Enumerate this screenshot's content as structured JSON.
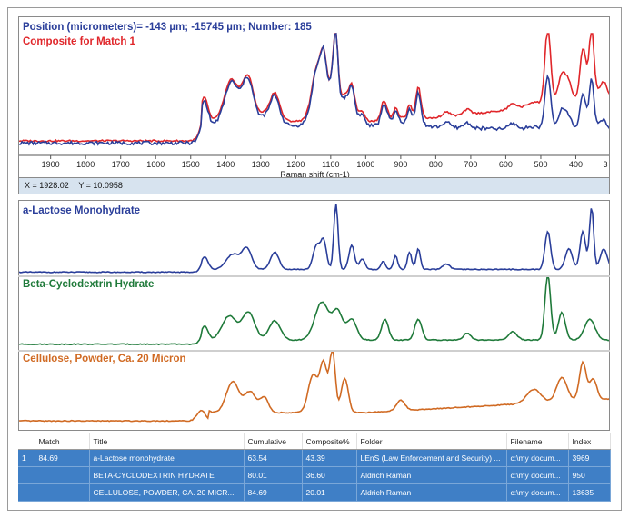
{
  "composite_panel": {
    "position_line": "Position (micrometers)= -143 µm; -15745 µm; Number: 185",
    "match_line": "Composite for Match 1",
    "x_axis_label": "Raman shift (cm-1)",
    "x_ticks": [
      "1900",
      "1800",
      "1700",
      "1600",
      "1500",
      "1400",
      "1300",
      "1200",
      "1100",
      "1000",
      "900",
      "800",
      "700",
      "600",
      "500",
      "400",
      "3"
    ],
    "cursor_x": "X = 1928.02",
    "cursor_y": "Y = 10.0958"
  },
  "reference_panels": [
    {
      "name": "a-Lactose Monohydrate",
      "color": "#2a3e9a"
    },
    {
      "name": "Beta-Cyclodextrin Hydrate",
      "color": "#1f7a3a"
    },
    {
      "name": "Cellulose, Powder, Ca. 20 Micron",
      "color": "#d06a23"
    }
  ],
  "colors": {
    "measured": "#2a3e9a",
    "composite": "#e0262a",
    "row_highlight": "#3f7fc6"
  },
  "results_table": {
    "headers": [
      "",
      "Match",
      "Title",
      "Cumulative",
      "Composite%",
      "Folder",
      "Filename",
      "Index"
    ],
    "rows": [
      [
        "1",
        "84.69",
        "a-Lactose monohydrate",
        "63.54",
        "43.39",
        "LEnS (Law Enforcement and Security) ...",
        "c:\\my docum...",
        "3969"
      ],
      [
        "",
        "",
        "BETA-CYCLODEXTRIN HYDRATE",
        "80.01",
        "36.60",
        "Aldrich Raman",
        "c:\\my docum...",
        "950"
      ],
      [
        "",
        "",
        "CELLULOSE, POWDER, CA. 20 MICR...",
        "84.69",
        "20.01",
        "Aldrich Raman",
        "c:\\my docum...",
        "13635"
      ]
    ]
  }
}
